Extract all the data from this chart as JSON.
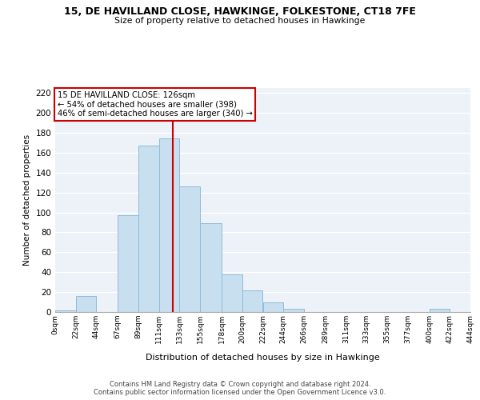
{
  "title": "15, DE HAVILLAND CLOSE, HAWKINGE, FOLKESTONE, CT18 7FE",
  "subtitle": "Size of property relative to detached houses in Hawkinge",
  "xlabel": "Distribution of detached houses by size in Hawkinge",
  "ylabel": "Number of detached properties",
  "bar_color": "#c8dff0",
  "bar_edge_color": "#90bcd8",
  "bin_edges": [
    0,
    22,
    44,
    67,
    89,
    111,
    133,
    155,
    178,
    200,
    222,
    244,
    266,
    289,
    311,
    333,
    355,
    377,
    400,
    422,
    444
  ],
  "bin_labels": [
    "0sqm",
    "22sqm",
    "44sqm",
    "67sqm",
    "89sqm",
    "111sqm",
    "133sqm",
    "155sqm",
    "178sqm",
    "200sqm",
    "222sqm",
    "244sqm",
    "266sqm",
    "289sqm",
    "311sqm",
    "333sqm",
    "355sqm",
    "377sqm",
    "400sqm",
    "422sqm",
    "444sqm"
  ],
  "counts": [
    2,
    16,
    0,
    97,
    167,
    174,
    126,
    89,
    38,
    22,
    10,
    3,
    0,
    0,
    0,
    0,
    0,
    0,
    3,
    0
  ],
  "vline_x": 126,
  "vline_color": "#cc0000",
  "ylim": [
    0,
    225
  ],
  "yticks": [
    0,
    20,
    40,
    60,
    80,
    100,
    120,
    140,
    160,
    180,
    200,
    220
  ],
  "annotation_text": "15 DE HAVILLAND CLOSE: 126sqm\n← 54% of detached houses are smaller (398)\n46% of semi-detached houses are larger (340) →",
  "annotation_box_color": "#ffffff",
  "annotation_box_edgecolor": "#cc0000",
  "footer_line1": "Contains HM Land Registry data © Crown copyright and database right 2024.",
  "footer_line2": "Contains public sector information licensed under the Open Government Licence v3.0.",
  "background_color": "#edf2f9",
  "grid_color": "#ffffff"
}
